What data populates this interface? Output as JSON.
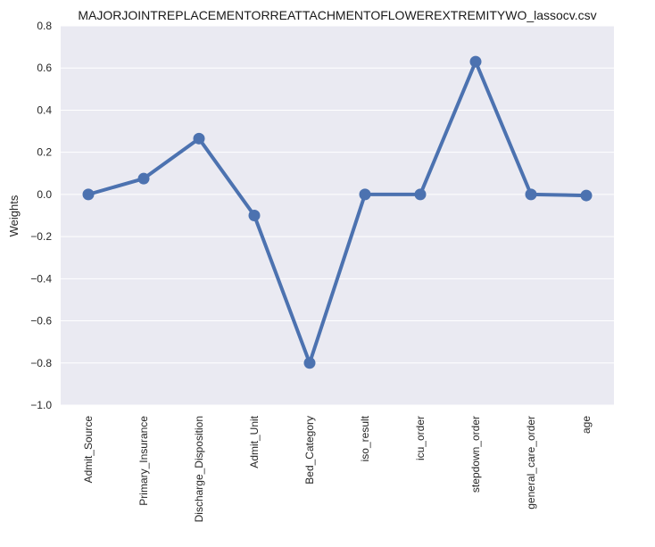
{
  "chart_data": {
    "type": "line",
    "title": "MAJORJOINTREPLACEMENTORREATTACHMENTOFLOWEREXTREMITYWO_lassocv.csv",
    "xlabel": "",
    "ylabel": "Weights",
    "categories": [
      "Admit_Source",
      "Primary_Insurance",
      "Discharge_Disposition",
      "Admit_Unit",
      "Bed_Category",
      "iso_result",
      "icu_order",
      "stepdown_order",
      "general_care_order",
      "age"
    ],
    "values": [
      0.0,
      0.075,
      0.265,
      -0.1,
      -0.8,
      0.0,
      0.0,
      0.63,
      0.0,
      -0.005
    ],
    "ylim": [
      -1.0,
      0.8
    ],
    "yticks": [
      0.8,
      0.6,
      0.4,
      0.2,
      0.0,
      -0.2,
      -0.4,
      -0.6,
      -0.8,
      -1.0
    ],
    "ytick_labels": [
      "0.8",
      "0.6",
      "0.4",
      "0.2",
      "0.0",
      "−0.2",
      "−0.4",
      "−0.6",
      "−0.8",
      "−1.0"
    ],
    "grid": true,
    "colors": {
      "line": "#4c72b0",
      "background": "#eaeaf2",
      "grid": "#ffffff"
    }
  }
}
